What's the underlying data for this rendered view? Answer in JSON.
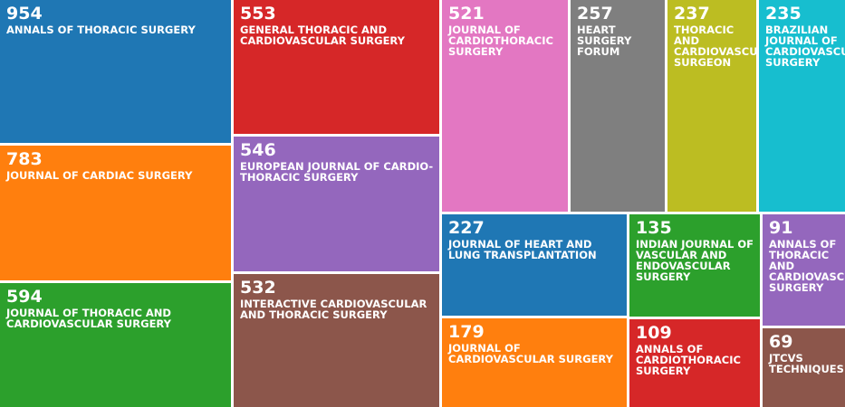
{
  "chart_data": {
    "type": "treemap",
    "items": [
      {
        "label": "ANNALS OF THORACIC SURGERY",
        "value": 954,
        "color": "#1f77b4"
      },
      {
        "label": "JOURNAL OF CARDIAC SURGERY",
        "value": 783,
        "color": "#ff7f0e"
      },
      {
        "label": "JOURNAL OF THORACIC AND CARDIOVASCULAR SURGERY",
        "value": 594,
        "color": "#2ca02c"
      },
      {
        "label": "GENERAL THORACIC AND CARDIOVASCULAR SURGERY",
        "value": 553,
        "color": "#d62728"
      },
      {
        "label": "EUROPEAN JOURNAL OF CARDIO-THORACIC SURGERY",
        "value": 546,
        "color": "#9467bd"
      },
      {
        "label": "INTERACTIVE CARDIOVASCULAR AND THORACIC SURGERY",
        "value": 532,
        "color": "#8c564b"
      },
      {
        "label": "JOURNAL OF CARDIOTHORACIC SURGERY",
        "value": 521,
        "color": "#e377c2"
      },
      {
        "label": "HEART SURGERY FORUM",
        "value": 257,
        "color": "#7f7f7f"
      },
      {
        "label": "THORACIC AND CARDIOVASCULAR SURGEON",
        "value": 237,
        "color": "#bcbd22"
      },
      {
        "label": "BRAZILIAN JOURNAL OF CARDIOVASCULAR SURGERY",
        "value": 235,
        "color": "#17becf"
      },
      {
        "label": "JOURNAL OF HEART AND LUNG TRANSPLANTATION",
        "value": 227,
        "color": "#1f77b4"
      },
      {
        "label": "JOURNAL OF CARDIOVASCULAR SURGERY",
        "value": 179,
        "color": "#ff7f0e"
      },
      {
        "label": "INDIAN JOURNAL OF VASCULAR AND ENDOVASCULAR SURGERY",
        "value": 135,
        "color": "#2ca02c"
      },
      {
        "label": "ANNALS OF CARDIOTHORACIC SURGERY",
        "value": 109,
        "color": "#d62728"
      },
      {
        "label": "ANNALS OF THORACIC AND CARDIOVASCULAR SURGERY",
        "value": 91,
        "color": "#9467bd"
      },
      {
        "label": "JTCVS TECHNIQUES",
        "value": 69,
        "color": "#8c564b"
      }
    ]
  }
}
